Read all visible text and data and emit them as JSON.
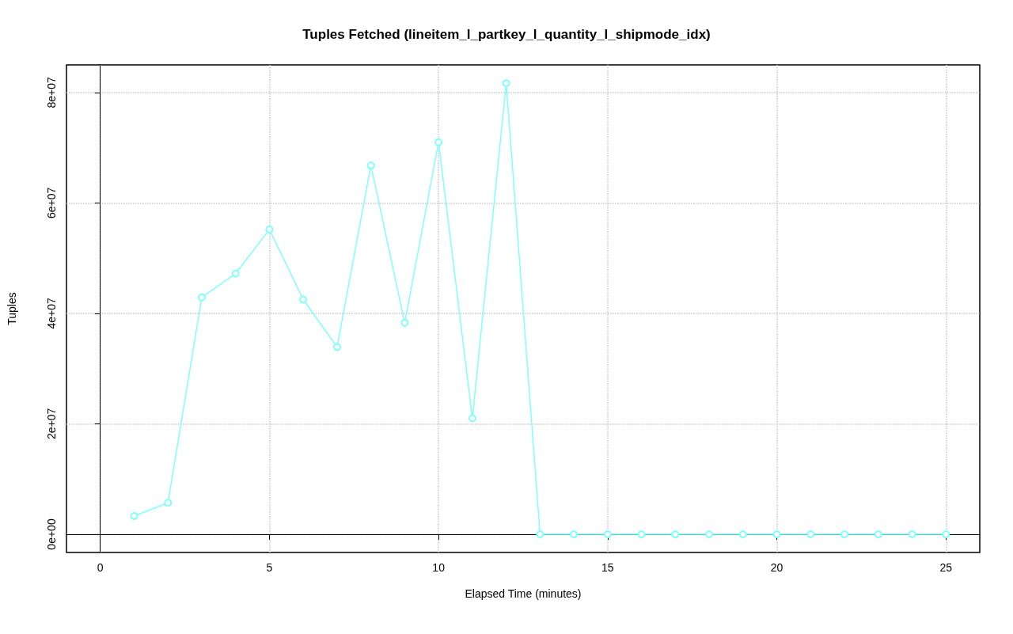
{
  "chart_data": {
    "type": "line",
    "title": "Tuples Fetched (lineitem_l_partkey_l_quantity_l_shipmode_idx)",
    "xlabel": "Elapsed Time (minutes)",
    "ylabel": "Tuples",
    "x": [
      1,
      2,
      3,
      4,
      5,
      6,
      7,
      8,
      9,
      10,
      11,
      12,
      13,
      14,
      15,
      16,
      17,
      18,
      19,
      20,
      21,
      22,
      23,
      24,
      25
    ],
    "series": [
      {
        "color": "#80ffff",
        "values": [
          3300000,
          5700000,
          42900000,
          47200000,
          55200000,
          42500000,
          33900000,
          66800000,
          38300000,
          71000000,
          21000000,
          81700000,
          0,
          0,
          0,
          0,
          0,
          0,
          0,
          0,
          0,
          0,
          0,
          0,
          0
        ]
      }
    ],
    "xlim": [
      -1,
      26
    ],
    "xticks": [
      0,
      5,
      10,
      15,
      20,
      25
    ],
    "ylim": [
      -3300000,
      85000000
    ],
    "yticks": [
      {
        "value": 0,
        "label": "0e+00"
      },
      {
        "value": 20000000,
        "label": "2e+07"
      },
      {
        "value": 40000000,
        "label": "4e+07"
      },
      {
        "value": 60000000,
        "label": "6e+07"
      },
      {
        "value": 80000000,
        "label": "8e+07"
      }
    ],
    "grid": true,
    "marker": "circle",
    "line_style": "solid"
  }
}
